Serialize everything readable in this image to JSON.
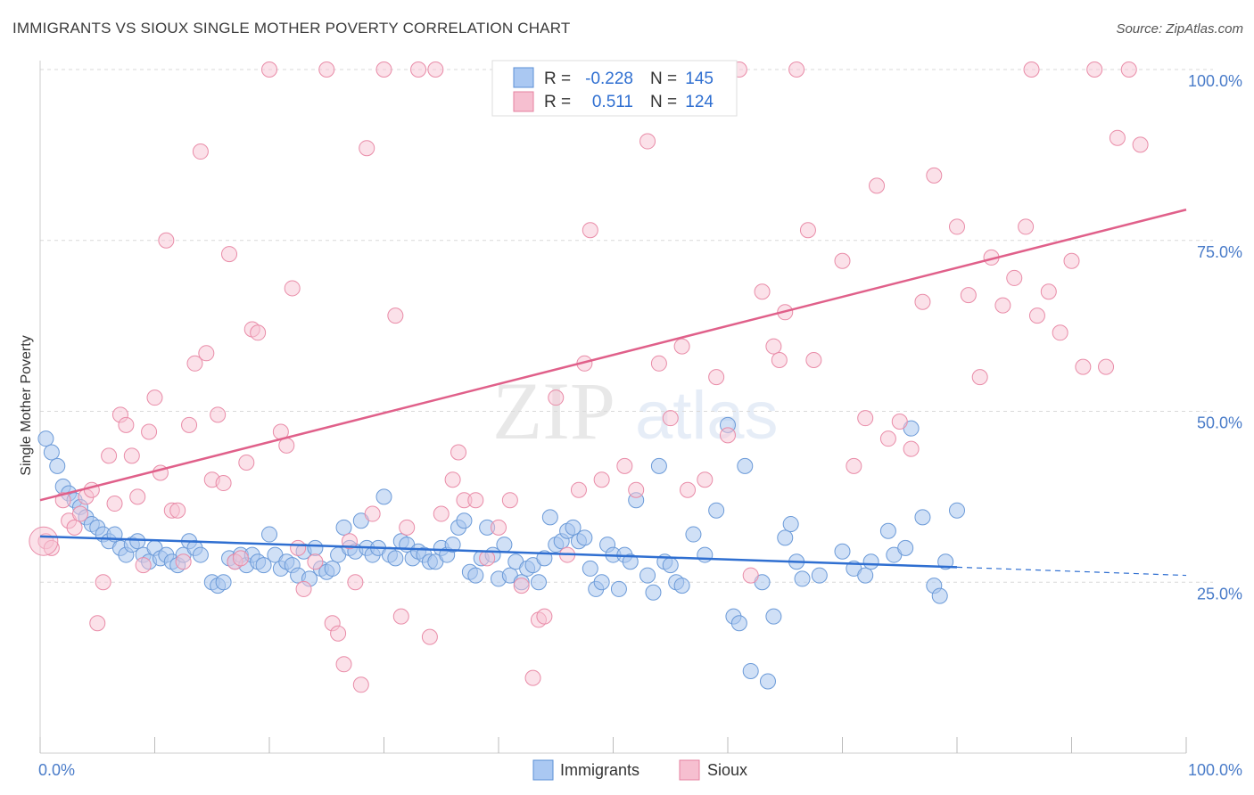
{
  "title": "IMMIGRANTS VS SIOUX SINGLE MOTHER POVERTY CORRELATION CHART",
  "source": "Source: ZipAtlas.com",
  "watermark": {
    "zip": "ZIP",
    "atlas": "atlas"
  },
  "legend": {
    "r_label": "R =",
    "n_label": "N =",
    "entries": [
      {
        "r": "-0.228",
        "n": "145",
        "fill": "#aac8f2",
        "stroke": "#5b8fd6"
      },
      {
        "r": "0.511",
        "n": "124",
        "fill": "#f6bfd0",
        "stroke": "#e5809f"
      }
    ]
  },
  "colors": {
    "immigrants_fill": "#a9c7ef",
    "immigrants_stroke": "#6b9ad8",
    "immigrants_line": "#2f6fd1",
    "sioux_fill": "#f7c3d3",
    "sioux_stroke": "#e98ca8",
    "sioux_line": "#e0608a",
    "grid": "#d9d9d9",
    "axis_text": "#4a7cc9"
  },
  "chart_data": {
    "type": "scatter",
    "title": "IMMIGRANTS VS SIOUX SINGLE MOTHER POVERTY CORRELATION CHART",
    "xlabel": "",
    "ylabel": "Single Mother Poverty",
    "xlim": [
      0,
      100
    ],
    "ylim": [
      0,
      100
    ],
    "x_tick_labels": [
      "0.0%",
      "100.0%"
    ],
    "y_tick_labels": [
      "25.0%",
      "50.0%",
      "75.0%",
      "100.0%"
    ],
    "y_ticks": [
      25,
      50,
      75,
      100
    ],
    "grid": true,
    "legend_position": "top-center",
    "bottom_legend": [
      "Immigrants",
      "Sioux"
    ],
    "series": [
      {
        "name": "Immigrants",
        "trend": {
          "x0": 0,
          "y0": 31.7,
          "x1": 80,
          "y1": 27.2,
          "dash_to": 100,
          "dash_y": 26.0
        },
        "points": [
          [
            0.5,
            46
          ],
          [
            1,
            44
          ],
          [
            1.5,
            42
          ],
          [
            2,
            39
          ],
          [
            2.5,
            38
          ],
          [
            3,
            37
          ],
          [
            3.5,
            36
          ],
          [
            4,
            34.5
          ],
          [
            4.5,
            33.5
          ],
          [
            5,
            33
          ],
          [
            5.5,
            32
          ],
          [
            6,
            31
          ],
          [
            6.5,
            32
          ],
          [
            7,
            30
          ],
          [
            7.5,
            29
          ],
          [
            8,
            30.5
          ],
          [
            8.5,
            31
          ],
          [
            9,
            29
          ],
          [
            9.5,
            28
          ],
          [
            10,
            30
          ],
          [
            10.5,
            28.5
          ],
          [
            11,
            29
          ],
          [
            11.5,
            28
          ],
          [
            12,
            27.5
          ],
          [
            12.5,
            29
          ],
          [
            13,
            31
          ],
          [
            13.5,
            30
          ],
          [
            14,
            29
          ],
          [
            15,
            25
          ],
          [
            15.5,
            24.5
          ],
          [
            16,
            25
          ],
          [
            16.5,
            28.5
          ],
          [
            17,
            28
          ],
          [
            17.5,
            29
          ],
          [
            18,
            27.5
          ],
          [
            18.5,
            29
          ],
          [
            19,
            28
          ],
          [
            19.5,
            27.5
          ],
          [
            20,
            32
          ],
          [
            20.5,
            29
          ],
          [
            21,
            27
          ],
          [
            21.5,
            28
          ],
          [
            22,
            27.5
          ],
          [
            22.5,
            26
          ],
          [
            23,
            29.5
          ],
          [
            23.5,
            25.5
          ],
          [
            24,
            30
          ],
          [
            24.5,
            27
          ],
          [
            25,
            26.5
          ],
          [
            25.5,
            27
          ],
          [
            26,
            29
          ],
          [
            26.5,
            33
          ],
          [
            27,
            30
          ],
          [
            27.5,
            29.5
          ],
          [
            28,
            34
          ],
          [
            28.5,
            30
          ],
          [
            29,
            29
          ],
          [
            29.5,
            30
          ],
          [
            30,
            37.5
          ],
          [
            30.5,
            29
          ],
          [
            31,
            28.5
          ],
          [
            31.5,
            31
          ],
          [
            32,
            30.5
          ],
          [
            32.5,
            28.5
          ],
          [
            33,
            29.5
          ],
          [
            33.5,
            29
          ],
          [
            34,
            28
          ],
          [
            34.5,
            28
          ],
          [
            35,
            30
          ],
          [
            35.5,
            29
          ],
          [
            36,
            30.5
          ],
          [
            36.5,
            33
          ],
          [
            37,
            34
          ],
          [
            37.5,
            26.5
          ],
          [
            38,
            26
          ],
          [
            38.5,
            28.5
          ],
          [
            39,
            33
          ],
          [
            39.5,
            29
          ],
          [
            40,
            25.5
          ],
          [
            40.5,
            30.5
          ],
          [
            41,
            26
          ],
          [
            41.5,
            28
          ],
          [
            42,
            25
          ],
          [
            42.5,
            27
          ],
          [
            43,
            27.5
          ],
          [
            43.5,
            25
          ],
          [
            44,
            28.5
          ],
          [
            44.5,
            34.5
          ],
          [
            45,
            30.5
          ],
          [
            45.5,
            31
          ],
          [
            46,
            32.5
          ],
          [
            46.5,
            33
          ],
          [
            47,
            31
          ],
          [
            47.5,
            31.5
          ],
          [
            48,
            27
          ],
          [
            48.5,
            24
          ],
          [
            49,
            25
          ],
          [
            49.5,
            30.5
          ],
          [
            50,
            29
          ],
          [
            50.5,
            24
          ],
          [
            51,
            29
          ],
          [
            51.5,
            28
          ],
          [
            52,
            37
          ],
          [
            53,
            26
          ],
          [
            53.5,
            23.5
          ],
          [
            54,
            42
          ],
          [
            54.5,
            28
          ],
          [
            55,
            27.5
          ],
          [
            55.5,
            25
          ],
          [
            56,
            24.5
          ],
          [
            57,
            32
          ],
          [
            58,
            29
          ],
          [
            59,
            35.5
          ],
          [
            60,
            48
          ],
          [
            60.5,
            20
          ],
          [
            61,
            19
          ],
          [
            61.5,
            42
          ],
          [
            62,
            12
          ],
          [
            63,
            25
          ],
          [
            63.5,
            10.5
          ],
          [
            64,
            20
          ],
          [
            65,
            31.5
          ],
          [
            65.5,
            33.5
          ],
          [
            66,
            28
          ],
          [
            66.5,
            25.5
          ],
          [
            68,
            26
          ],
          [
            70,
            29.5
          ],
          [
            71,
            27
          ],
          [
            72,
            26
          ],
          [
            72.5,
            28
          ],
          [
            74,
            32.5
          ],
          [
            74.5,
            29
          ],
          [
            75.5,
            30
          ],
          [
            76,
            47.5
          ],
          [
            77,
            34.5
          ],
          [
            78,
            24.5
          ],
          [
            78.5,
            23
          ],
          [
            79,
            28
          ],
          [
            80,
            35.5
          ]
        ]
      },
      {
        "name": "Sioux",
        "trend": {
          "x0": 0,
          "y0": 37.0,
          "x1": 100,
          "y1": 79.5
        },
        "points": [
          [
            0.5,
            31
          ],
          [
            1,
            30
          ],
          [
            2,
            37
          ],
          [
            2.5,
            34
          ],
          [
            3,
            33
          ],
          [
            3.5,
            35
          ],
          [
            4,
            37.5
          ],
          [
            4.5,
            38.5
          ],
          [
            5,
            19
          ],
          [
            5.5,
            25
          ],
          [
            6,
            43.5
          ],
          [
            6.5,
            36.5
          ],
          [
            7,
            49.5
          ],
          [
            7.5,
            48
          ],
          [
            8,
            43.5
          ],
          [
            8.5,
            37.5
          ],
          [
            9,
            27.5
          ],
          [
            9.5,
            47
          ],
          [
            10,
            52
          ],
          [
            10.5,
            41
          ],
          [
            11,
            75
          ],
          [
            11.5,
            35.5
          ],
          [
            12,
            35.5
          ],
          [
            12.5,
            28
          ],
          [
            13,
            48
          ],
          [
            13.5,
            57
          ],
          [
            14,
            88
          ],
          [
            14.5,
            58.5
          ],
          [
            15,
            40
          ],
          [
            15.5,
            49.5
          ],
          [
            16,
            39.5
          ],
          [
            16.5,
            73
          ],
          [
            17,
            28
          ],
          [
            17.5,
            28.5
          ],
          [
            18,
            42.5
          ],
          [
            18.5,
            62
          ],
          [
            19,
            61.5
          ],
          [
            20,
            100
          ],
          [
            21,
            47
          ],
          [
            21.5,
            45
          ],
          [
            22,
            68
          ],
          [
            22.5,
            30
          ],
          [
            23,
            24
          ],
          [
            24,
            28
          ],
          [
            25,
            100
          ],
          [
            25.5,
            19
          ],
          [
            26,
            17.5
          ],
          [
            26.5,
            13
          ],
          [
            27,
            31
          ],
          [
            27.5,
            25
          ],
          [
            28,
            10
          ],
          [
            28.5,
            88.5
          ],
          [
            29,
            35
          ],
          [
            30,
            100
          ],
          [
            31,
            64
          ],
          [
            31.5,
            20
          ],
          [
            32,
            33
          ],
          [
            33,
            100
          ],
          [
            34,
            17
          ],
          [
            34.5,
            100
          ],
          [
            35,
            35
          ],
          [
            36,
            40
          ],
          [
            36.5,
            44
          ],
          [
            37,
            37
          ],
          [
            38,
            37
          ],
          [
            39,
            28.5
          ],
          [
            40,
            33
          ],
          [
            41,
            37
          ],
          [
            42,
            24.5
          ],
          [
            43,
            11
          ],
          [
            43.5,
            19.5
          ],
          [
            44,
            20
          ],
          [
            45,
            52
          ],
          [
            46,
            29
          ],
          [
            47,
            38.5
          ],
          [
            47.5,
            57
          ],
          [
            48,
            76.5
          ],
          [
            49,
            40
          ],
          [
            50,
            100
          ],
          [
            51,
            42
          ],
          [
            52,
            38.5
          ],
          [
            53,
            89.5
          ],
          [
            54,
            57
          ],
          [
            55,
            49
          ],
          [
            56,
            59.5
          ],
          [
            56.5,
            38.5
          ],
          [
            58,
            40
          ],
          [
            59,
            55
          ],
          [
            60,
            46.5
          ],
          [
            61,
            100
          ],
          [
            62,
            26
          ],
          [
            63,
            67.5
          ],
          [
            64,
            59.5
          ],
          [
            64.5,
            57.5
          ],
          [
            65,
            64.5
          ],
          [
            66,
            100
          ],
          [
            67,
            76.5
          ],
          [
            67.5,
            57.5
          ],
          [
            70,
            72
          ],
          [
            71,
            42
          ],
          [
            72,
            49
          ],
          [
            73,
            83
          ],
          [
            74,
            46
          ],
          [
            75,
            48.5
          ],
          [
            76,
            44.5
          ],
          [
            77,
            66
          ],
          [
            78,
            84.5
          ],
          [
            80,
            77
          ],
          [
            81,
            67
          ],
          [
            82,
            55
          ],
          [
            83,
            72.5
          ],
          [
            84,
            65.5
          ],
          [
            85,
            69.5
          ],
          [
            86,
            77
          ],
          [
            86.5,
            100
          ],
          [
            87,
            64
          ],
          [
            88,
            67.5
          ],
          [
            89,
            61.5
          ],
          [
            90,
            72
          ],
          [
            91,
            56.5
          ],
          [
            92,
            100
          ],
          [
            93,
            56.5
          ],
          [
            94,
            90
          ],
          [
            95,
            100
          ],
          [
            96,
            89
          ]
        ]
      }
    ]
  }
}
